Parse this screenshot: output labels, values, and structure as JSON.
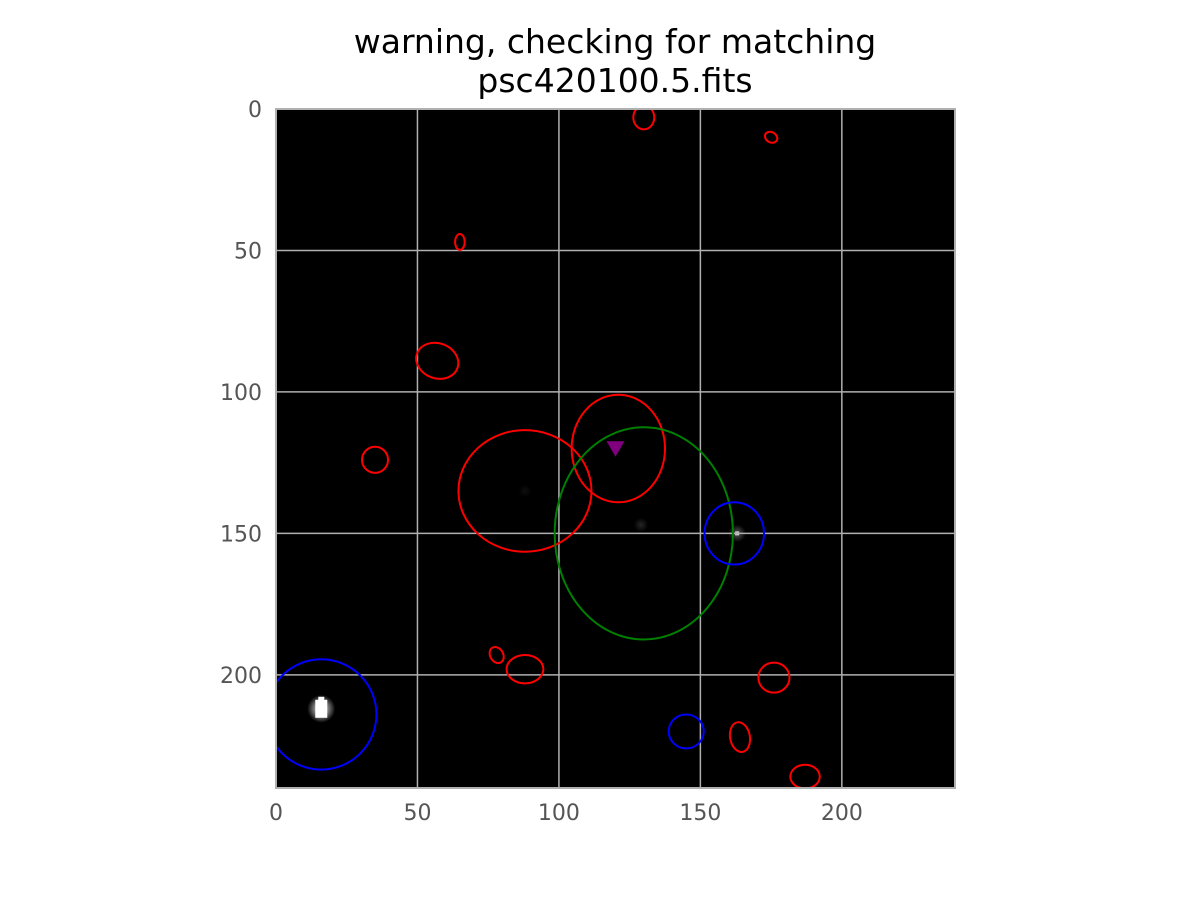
{
  "chart_data": {
    "type": "scatter",
    "title_lines": [
      "warning, checking for matching",
      "psc420100.5.fits"
    ],
    "xlabel": "",
    "ylabel": "",
    "xlim": [
      0,
      240
    ],
    "ylim": [
      240,
      0
    ],
    "y_inverted": true,
    "grid": true,
    "background": "#000000",
    "grid_color": "#b0b0b0",
    "xticks": [
      0,
      50,
      100,
      150,
      200
    ],
    "yticks": [
      0,
      50,
      100,
      150,
      200
    ],
    "image_sources": [
      {
        "x": 16,
        "y": 212,
        "brightness": 1.0
      },
      {
        "x": 129,
        "y": 147,
        "brightness": 0.15
      },
      {
        "x": 163,
        "y": 150,
        "brightness": 0.35
      },
      {
        "x": 88,
        "y": 135,
        "brightness": 0.06
      }
    ],
    "marker": {
      "x": 120,
      "y": 120,
      "shape": "triangle-down",
      "color": "#800080"
    },
    "ellipses": [
      {
        "x": 130,
        "y": 3,
        "rx": 3.7,
        "ry": 4.2,
        "angle": 0,
        "color": "#ff0000"
      },
      {
        "x": 175,
        "y": 10,
        "rx": 2.3,
        "ry": 1.8,
        "angle": 30,
        "color": "#ff0000"
      },
      {
        "x": 65,
        "y": 47,
        "rx": 1.7,
        "ry": 2.8,
        "angle": 0,
        "color": "#ff0000"
      },
      {
        "x": 57,
        "y": 89,
        "rx": 7.6,
        "ry": 6.2,
        "angle": 20,
        "color": "#ff0000"
      },
      {
        "x": 35,
        "y": 124,
        "rx": 4.6,
        "ry": 4.6,
        "angle": 0,
        "color": "#ff0000"
      },
      {
        "x": 88,
        "y": 135,
        "rx": 23.5,
        "ry": 21.5,
        "angle": 0,
        "color": "#ff0000"
      },
      {
        "x": 121,
        "y": 120,
        "rx": 16.5,
        "ry": 19,
        "angle": 0,
        "color": "#ff0000"
      },
      {
        "x": 78,
        "y": 193,
        "rx": 2.3,
        "ry": 3,
        "angle": -30,
        "color": "#ff0000"
      },
      {
        "x": 88,
        "y": 198,
        "rx": 6.5,
        "ry": 5,
        "angle": 0,
        "color": "#ff0000"
      },
      {
        "x": 176,
        "y": 201,
        "rx": 5.5,
        "ry": 5.3,
        "angle": 0,
        "color": "#ff0000"
      },
      {
        "x": 164,
        "y": 222,
        "rx": 3.5,
        "ry": 5.3,
        "angle": -10,
        "color": "#ff0000"
      },
      {
        "x": 187,
        "y": 236,
        "rx": 5.2,
        "ry": 4.2,
        "angle": 0,
        "color": "#ff0000"
      },
      {
        "x": 130,
        "y": 150,
        "rx": 31.5,
        "ry": 37.5,
        "angle": 0,
        "color": "#008000"
      },
      {
        "x": 162,
        "y": 150,
        "rx": 10.5,
        "ry": 11,
        "angle": 0,
        "color": "#0000ff"
      },
      {
        "x": 16,
        "y": 214,
        "rx": 19.5,
        "ry": 19.5,
        "angle": 0,
        "color": "#0000ff"
      },
      {
        "x": 145,
        "y": 220,
        "rx": 6.2,
        "ry": 6.0,
        "angle": 0,
        "color": "#0000ff"
      }
    ]
  }
}
